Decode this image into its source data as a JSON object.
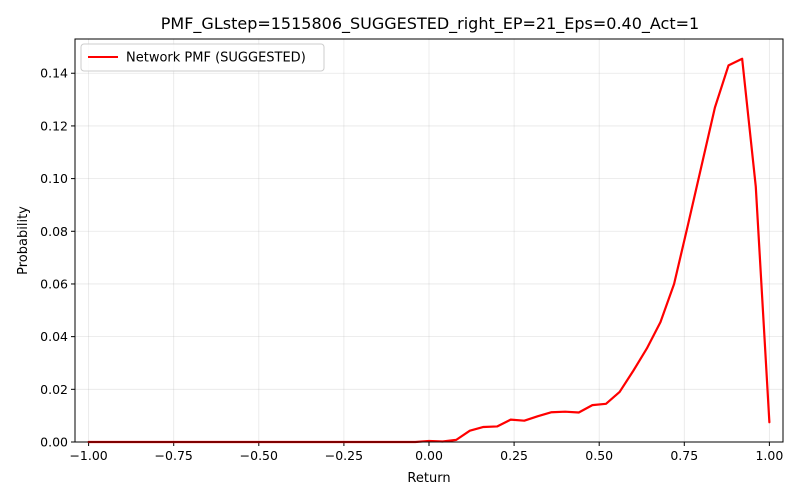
{
  "chart_data": {
    "type": "line",
    "title": "PMF_GLstep=1515806_SUGGESTED_right_EP=21_Eps=0.40_Act=1",
    "xlabel": "Return",
    "ylabel": "Probability",
    "xlim": [
      -1.04,
      1.04
    ],
    "ylim": [
      0.0,
      0.153
    ],
    "xticks": [
      -1.0,
      -0.75,
      -0.5,
      -0.25,
      0.0,
      0.25,
      0.5,
      0.75,
      1.0
    ],
    "xtick_labels": [
      "−1.00",
      "−0.75",
      "−0.50",
      "−0.25",
      "0.00",
      "0.25",
      "0.50",
      "0.75",
      "1.00"
    ],
    "yticks": [
      0.0,
      0.02,
      0.04,
      0.06,
      0.08,
      0.1,
      0.12,
      0.14
    ],
    "ytick_labels": [
      "0.00",
      "0.02",
      "0.04",
      "0.06",
      "0.08",
      "0.10",
      "0.12",
      "0.14"
    ],
    "grid": true,
    "legend_position": "top-left",
    "series": [
      {
        "name": "Network PMF (SUGGESTED)",
        "color": "#ff0000",
        "x": [
          -1.0,
          -0.96,
          -0.92,
          -0.88,
          -0.84,
          -0.8,
          -0.76,
          -0.72,
          -0.68,
          -0.64,
          -0.6,
          -0.56,
          -0.52,
          -0.48,
          -0.44,
          -0.4,
          -0.36,
          -0.32,
          -0.28,
          -0.24,
          -0.2,
          -0.16,
          -0.12,
          -0.08,
          -0.04,
          0.0,
          0.04,
          0.08,
          0.12,
          0.16,
          0.2,
          0.24,
          0.28,
          0.32,
          0.36,
          0.4,
          0.44,
          0.48,
          0.52,
          0.56,
          0.6,
          0.64,
          0.68,
          0.72,
          0.76,
          0.8,
          0.84,
          0.88,
          0.92,
          0.96,
          1.0
        ],
        "y": [
          0.0,
          0.0,
          0.0,
          0.0,
          0.0,
          0.0,
          0.0,
          0.0,
          0.0,
          0.0,
          0.0,
          0.0,
          0.0,
          0.0,
          0.0,
          0.0,
          0.0,
          0.0,
          0.0,
          0.0,
          0.0,
          0.0,
          0.0,
          0.0,
          0.0,
          0.0004,
          0.0002,
          0.0008,
          0.0043,
          0.0057,
          0.0059,
          0.0085,
          0.0081,
          0.0098,
          0.0113,
          0.0115,
          0.0112,
          0.014,
          0.0145,
          0.019,
          0.027,
          0.0355,
          0.0455,
          0.06,
          0.082,
          0.1045,
          0.127,
          0.143,
          0.1455,
          0.097,
          0.0075
        ]
      }
    ]
  }
}
